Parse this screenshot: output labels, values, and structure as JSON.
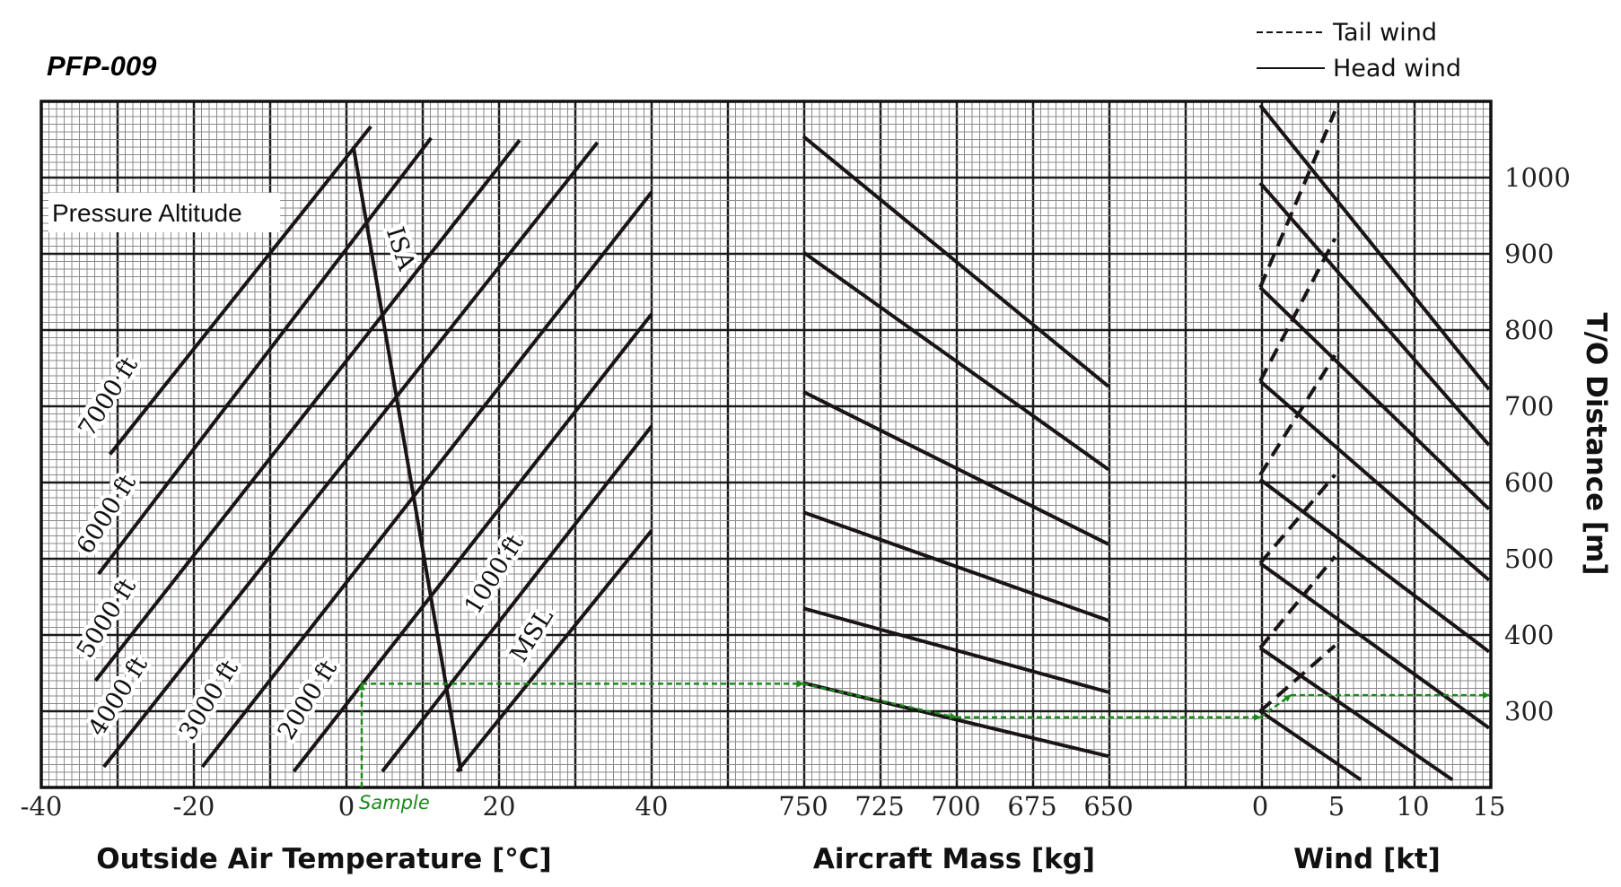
{
  "chart_data": {
    "type": "line",
    "title": "PFP-009",
    "legend": {
      "placement": "top-right",
      "entries": [
        {
          "label": "Tail wind",
          "style": "dashed"
        },
        {
          "label": "Head wind",
          "style": "solid"
        }
      ]
    },
    "grid": true,
    "y": {
      "label": "T/O Distance [m]",
      "lim": [
        200,
        1100
      ],
      "ticks": [
        300,
        400,
        500,
        600,
        700,
        800,
        900,
        1000
      ]
    },
    "panels": [
      {
        "id": "temperature",
        "xlabel": "Outside Air Temperature [°C]",
        "xlim": [
          -40,
          40
        ],
        "xticks": [
          -40,
          -20,
          0,
          20,
          40
        ],
        "annotation": "Pressure Altitude",
        "series": [
          {
            "name": "7000 ft",
            "points": [
              [
                -31,
                637
              ],
              [
                3.2,
                1067
              ]
            ]
          },
          {
            "name": "6000 ft",
            "points": [
              [
                -32.5,
                480
              ],
              [
                11.1,
                1052
              ]
            ]
          },
          {
            "name": "5000 ft",
            "points": [
              [
                -32.9,
                340
              ],
              [
                22.7,
                1049
              ]
            ]
          },
          {
            "name": "4000 ft",
            "points": [
              [
                -31.8,
                227
              ],
              [
                32.9,
                1046
              ]
            ]
          },
          {
            "name": "3000 ft",
            "points": [
              [
                -18.9,
                227
              ],
              [
                40,
                981
              ]
            ]
          },
          {
            "name": "2000 ft",
            "points": [
              [
                -6.9,
                221
              ],
              [
                40,
                821
              ]
            ]
          },
          {
            "name": "1000 ft",
            "points": [
              [
                4.7,
                221
              ],
              [
                40,
                674
              ]
            ]
          },
          {
            "name": "MSL",
            "points": [
              [
                14.5,
                221
              ],
              [
                40,
                537
              ]
            ]
          }
        ],
        "isa": {
          "name": "ISA",
          "points": [
            [
              0.9,
              1041
            ],
            [
              15,
              221
            ]
          ]
        }
      },
      {
        "id": "mass",
        "xlabel": "Aircraft Mass [kg]",
        "xlim": [
          750,
          650
        ],
        "xticks": [
          750,
          725,
          700,
          675,
          650
        ],
        "series": [
          {
            "points": [
              [
                750,
                1054
              ],
              [
                650,
                726
              ]
            ]
          },
          {
            "points": [
              [
                750,
                902
              ],
              [
                650,
                617
              ]
            ]
          },
          {
            "points": [
              [
                750,
                719
              ],
              [
                650,
                519
              ]
            ]
          },
          {
            "points": [
              [
                750,
                561
              ],
              [
                650,
                419
              ]
            ]
          },
          {
            "points": [
              [
                750,
                435
              ],
              [
                650,
                325
              ]
            ]
          },
          {
            "points": [
              [
                750,
                337
              ],
              [
                650,
                241
              ]
            ]
          }
        ]
      },
      {
        "id": "wind",
        "xlabel": "Wind [kt]",
        "xlim": [
          0,
          15
        ],
        "xticks": [
          0,
          5,
          10,
          15
        ],
        "head_wind": [
          {
            "points": [
              [
                0,
                1095
              ],
              [
                15,
                722
              ]
            ]
          },
          {
            "points": [
              [
                0,
                993
              ],
              [
                15,
                649
              ]
            ]
          },
          {
            "points": [
              [
                0,
                856
              ],
              [
                15,
                565
              ]
            ]
          },
          {
            "points": [
              [
                0,
                733
              ],
              [
                15,
                472
              ]
            ]
          },
          {
            "points": [
              [
                0,
                604
              ],
              [
                15,
                378
              ]
            ]
          },
          {
            "points": [
              [
                0,
                494
              ],
              [
                15,
                278
              ]
            ]
          },
          {
            "points": [
              [
                0,
                383
              ],
              [
                12.6,
                210
              ]
            ]
          },
          {
            "points": [
              [
                0,
                300
              ],
              [
                6.6,
                210
              ]
            ]
          }
        ],
        "tail_wind": [
          {
            "points": [
              [
                0,
                856
              ],
              [
                4.9,
                1087
              ]
            ]
          },
          {
            "points": [
              [
                0,
                733
              ],
              [
                4.9,
                920
              ]
            ]
          },
          {
            "points": [
              [
                0,
                610
              ],
              [
                4.9,
                767
              ]
            ]
          },
          {
            "points": [
              [
                0,
                494
              ],
              [
                4.9,
                610
              ]
            ]
          },
          {
            "points": [
              [
                0,
                383
              ],
              [
                4.9,
                503
              ]
            ]
          },
          {
            "points": [
              [
                0,
                300
              ],
              [
                4.9,
                386
              ]
            ]
          }
        ]
      }
    ],
    "sample": {
      "label": "Sample",
      "color": "#1a8a1a",
      "path": [
        {
          "panel": "temperature",
          "x": 2,
          "y": 200
        },
        {
          "panel": "temperature",
          "x": 2,
          "y": 336
        },
        {
          "panel": "mass",
          "x": 750,
          "y": 336
        },
        {
          "panel": "mass",
          "x": 700,
          "y": 292
        },
        {
          "panel": "wind",
          "x": 0,
          "y": 292
        },
        {
          "panel": "wind",
          "x": 2,
          "y": 321
        },
        {
          "panel": "wind",
          "x": 15,
          "y": 321
        }
      ]
    }
  }
}
